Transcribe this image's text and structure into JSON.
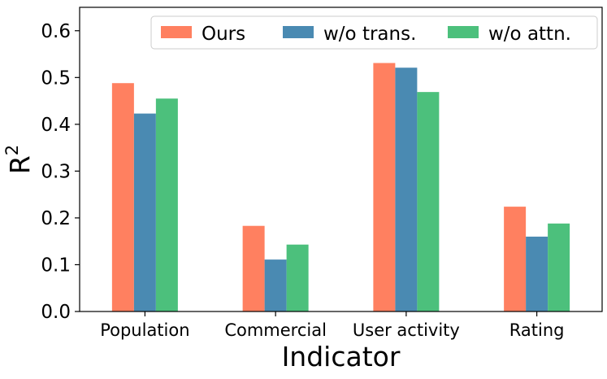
{
  "chart_data": {
    "type": "bar",
    "categories": [
      "Population",
      "Commercial",
      "User activity",
      "Rating"
    ],
    "series": [
      {
        "name": "Ours",
        "color": "#ff8060",
        "values": [
          0.488,
          0.183,
          0.531,
          0.224
        ]
      },
      {
        "name": "w/o trans.",
        "color": "#4a8ab2",
        "values": [
          0.423,
          0.111,
          0.521,
          0.16
        ]
      },
      {
        "name": "w/o attn.",
        "color": "#4cc07c",
        "values": [
          0.455,
          0.143,
          0.469,
          0.188
        ]
      }
    ],
    "xlabel": "Indicator",
    "ylabel": "R",
    "ylabel_superscript": "2",
    "ylim": [
      0,
      0.65
    ],
    "yticks": [
      "0.0",
      "0.1",
      "0.2",
      "0.3",
      "0.4",
      "0.5",
      "0.6"
    ],
    "legend_position": "top-right",
    "grid": false
  }
}
